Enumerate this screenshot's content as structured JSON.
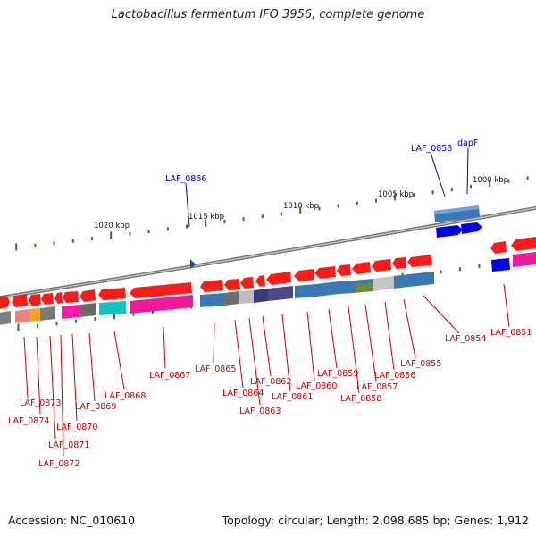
{
  "title": "Lactobacillus fermentum IFO 3956, complete genome",
  "footer": {
    "accession": "Accession: NC_010610",
    "summary": "Topology: circular; Length: 2,098,685 bp; Genes: 1,912"
  },
  "colors": {
    "forward_gene": "#ff1a1a",
    "reverse_gene_blue": "#0000ee",
    "label_red": "#cc0000",
    "label_blue": "#0000cc",
    "tick_green": "#2d7a1a",
    "backbone": "#888888"
  },
  "scale_labels": [
    "1020 kbp",
    "1015 kbp",
    "1010 kbp",
    "1005 kbp",
    "1000 kbp"
  ],
  "upper_labels": [
    "LAF_0866",
    "LAF_0853",
    "dapF"
  ],
  "lower_labels": [
    "LAF_0873",
    "LAF_0874",
    "LAF_0871",
    "LAF_0872",
    "LAF_0870",
    "LAF_0869",
    "LAF_0868",
    "LAF_0867",
    "LAF_0865",
    "LAF_0864",
    "LAF_0863",
    "LAF_0862",
    "LAF_0861",
    "LAF_0860",
    "LAF_0859",
    "LAF_0858",
    "LAF_0857",
    "LAF_0856",
    "LAF_0855",
    "LAF_0854",
    "LAF_0851"
  ]
}
